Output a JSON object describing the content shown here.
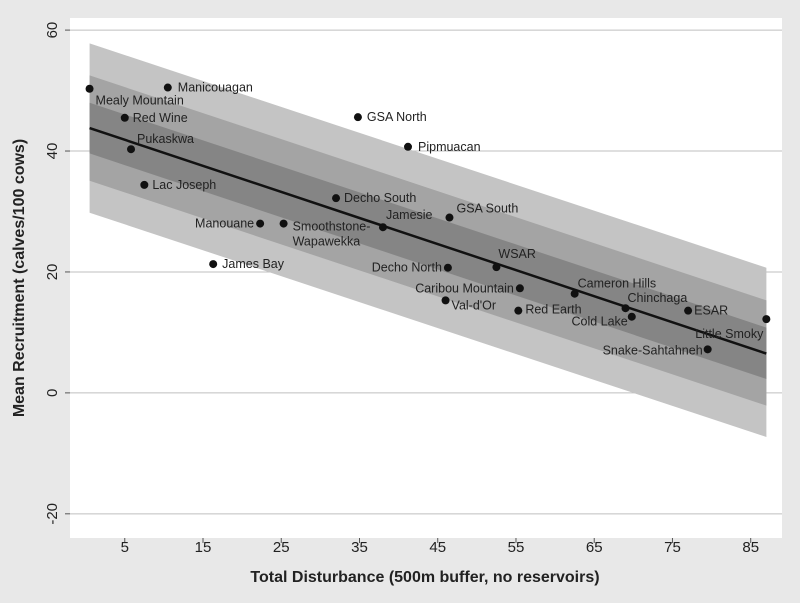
{
  "chart_data": {
    "type": "scatter",
    "title": "",
    "xlabel": "Total Disturbance (500m buffer, no reservoirs)",
    "ylabel": "Mean Recruitment (calves/100 cows)",
    "xlim": [
      -2,
      89
    ],
    "ylim": [
      -24,
      62
    ],
    "xticks": [
      5,
      15,
      25,
      35,
      45,
      55,
      65,
      75,
      85
    ],
    "yticks": [
      -20,
      0,
      20,
      40,
      60
    ],
    "grid": "horizontal",
    "regression_line": {
      "x": [
        0.5,
        87
      ],
      "y": [
        43.8,
        6.5
      ]
    },
    "bands": [
      {
        "name": "outer",
        "color": "#c4c4c4",
        "upper": [
          57.8,
          20.7
        ],
        "lower": [
          29.8,
          -7.3
        ]
      },
      {
        "name": "middle",
        "color": "#a4a4a4",
        "upper": [
          52.5,
          15.3
        ],
        "lower": [
          35.1,
          -2.1
        ]
      },
      {
        "name": "inner",
        "color": "#858585",
        "upper": [
          48.0,
          10.8
        ],
        "lower": [
          39.6,
          2.3
        ]
      }
    ],
    "points": [
      {
        "label": "Mealy Mountain",
        "x": 0.5,
        "y": 50.3
      },
      {
        "label": "Manicouagan",
        "x": 10.5,
        "y": 50.5
      },
      {
        "label": "Red Wine",
        "x": 5.0,
        "y": 45.5
      },
      {
        "label": "Pukaskwa",
        "x": 5.8,
        "y": 40.3
      },
      {
        "label": "Lac Joseph",
        "x": 7.5,
        "y": 34.4
      },
      {
        "label": "GSA North",
        "x": 34.8,
        "y": 45.6
      },
      {
        "label": "Pipmuacan",
        "x": 41.2,
        "y": 40.7
      },
      {
        "label": "Decho South",
        "x": 32.0,
        "y": 32.2
      },
      {
        "label": "GSA South",
        "x": 46.5,
        "y": 29.0
      },
      {
        "label": "Jamesie",
        "x": 38.0,
        "y": 27.4
      },
      {
        "label": "Manouane",
        "x": 22.3,
        "y": 28.0
      },
      {
        "label": "Smoothstone-Wapawekka",
        "x": 25.3,
        "y": 28.0
      },
      {
        "label": "James Bay",
        "x": 16.3,
        "y": 21.3
      },
      {
        "label": "Decho North",
        "x": 46.3,
        "y": 20.7
      },
      {
        "label": "WSAR",
        "x": 52.5,
        "y": 20.8
      },
      {
        "label": "Caribou Mountain",
        "x": 55.5,
        "y": 17.3
      },
      {
        "label": "Val-d'Or",
        "x": 46.0,
        "y": 15.3
      },
      {
        "label": "Red Earth",
        "x": 55.3,
        "y": 13.6
      },
      {
        "label": "Cameron Hills",
        "x": 62.5,
        "y": 16.4
      },
      {
        "label": "Chinchaga",
        "x": 69.0,
        "y": 14.0
      },
      {
        "label": "Cold Lake",
        "x": 69.8,
        "y": 12.6
      },
      {
        "label": "ESAR",
        "x": 77.0,
        "y": 13.6
      },
      {
        "label": "Little Smoky",
        "x": 87.0,
        "y": 12.2
      },
      {
        "label": "Snake-Sahtahneh",
        "x": 79.5,
        "y": 7.2
      }
    ]
  }
}
